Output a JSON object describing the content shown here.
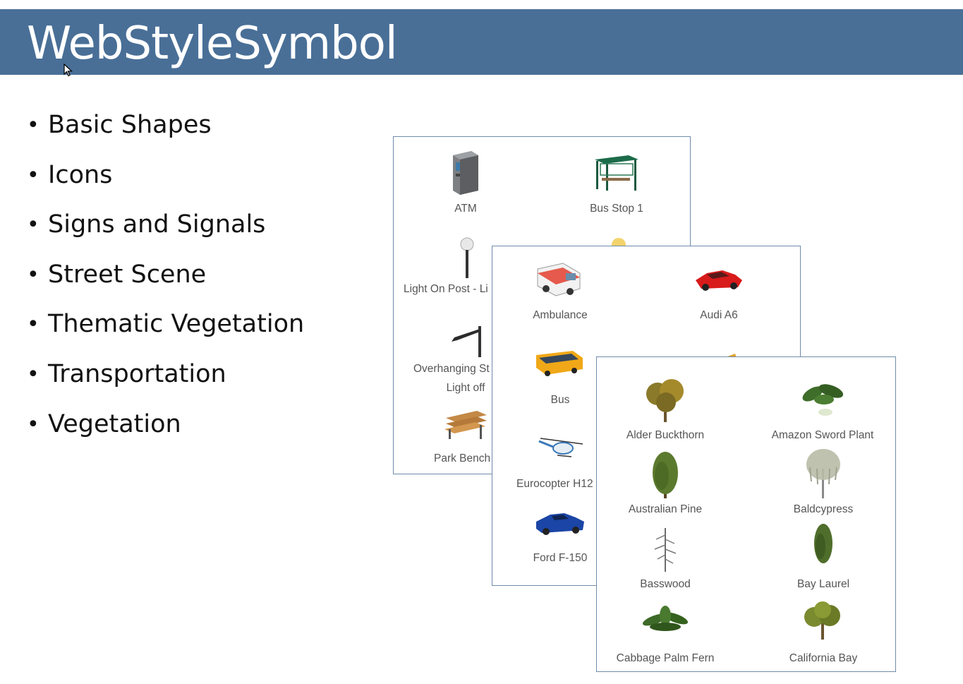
{
  "slide": {
    "title": "WebStyleSymbol",
    "bullets": [
      "Basic Shapes",
      "Icons",
      "Signs and Signals",
      "Street Scene",
      "Thematic Vegetation",
      "Transportation",
      "Vegetation"
    ]
  },
  "panels": {
    "street_scene": {
      "items": [
        "ATM",
        "Bus Stop 1",
        "Light On Post - Li",
        "Overhanging St",
        "Light off",
        "Park Bench"
      ]
    },
    "transportation": {
      "items": [
        "Ambulance",
        "Audi A6",
        "Bus",
        "Eurocopter H12",
        "Ford F-150"
      ]
    },
    "vegetation": {
      "items": [
        "Alder Buckthorn",
        "Amazon Sword Plant",
        "Australian Pine",
        "Baldcypress",
        "Basswood",
        "Bay Laurel",
        "Cabbage Palm Fern",
        "California Bay"
      ]
    }
  },
  "colors": {
    "header": "#496f97",
    "panel_border": "#6f8bab",
    "label": "#555555"
  }
}
